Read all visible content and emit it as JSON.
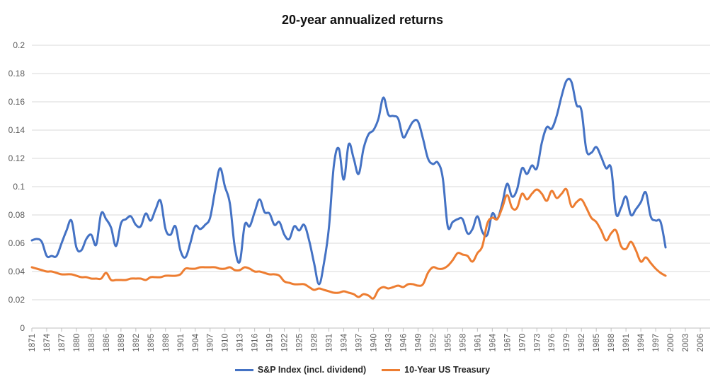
{
  "chart_data": {
    "type": "line",
    "title": "20-year annualized returns",
    "xlabel": "",
    "ylabel": "",
    "ylim": [
      0,
      0.2
    ],
    "yticks": [
      "0",
      "0.02",
      "0.04",
      "0.06",
      "0.08",
      "0.1",
      "0.12",
      "0.14",
      "0.16",
      "0.18",
      "0.2"
    ],
    "xlim": [
      1871,
      2008
    ],
    "xticks": [
      "1871",
      "1874",
      "1877",
      "1880",
      "1883",
      "1886",
      "1889",
      "1892",
      "1895",
      "1898",
      "1901",
      "1904",
      "1907",
      "1910",
      "1913",
      "1916",
      "1919",
      "1922",
      "1925",
      "1928",
      "1931",
      "1934",
      "1937",
      "1940",
      "1943",
      "1946",
      "1949",
      "1952",
      "1955",
      "1958",
      "1961",
      "1964",
      "1967",
      "1970",
      "1973",
      "1976",
      "1979",
      "1982",
      "1985",
      "1988",
      "1991",
      "1994",
      "1997",
      "2000",
      "2003",
      "2006"
    ],
    "grid": true,
    "legend_position": "bottom",
    "series": [
      {
        "name": "S&P Index (incl. dividend)",
        "color": "#4472C4",
        "x": [
          1871,
          1872,
          1873,
          1874,
          1875,
          1876,
          1877,
          1878,
          1879,
          1880,
          1881,
          1882,
          1883,
          1884,
          1885,
          1886,
          1887,
          1888,
          1889,
          1890,
          1891,
          1892,
          1893,
          1894,
          1895,
          1896,
          1897,
          1898,
          1899,
          1900,
          1901,
          1902,
          1903,
          1904,
          1905,
          1906,
          1907,
          1908,
          1909,
          1910,
          1911,
          1912,
          1913,
          1914,
          1915,
          1916,
          1917,
          1918,
          1919,
          1920,
          1921,
          1922,
          1923,
          1924,
          1925,
          1926,
          1927,
          1928,
          1929,
          1930,
          1931,
          1932,
          1933,
          1934,
          1935,
          1936,
          1937,
          1938,
          1939,
          1940,
          1941,
          1942,
          1943,
          1944,
          1945,
          1946,
          1947,
          1948,
          1949,
          1950,
          1951,
          1952,
          1953,
          1954,
          1955,
          1956,
          1957,
          1958,
          1959,
          1960,
          1961,
          1962,
          1963,
          1964,
          1965,
          1966,
          1967,
          1968,
          1969,
          1970,
          1971,
          1972,
          1973,
          1974,
          1975,
          1976,
          1977,
          1978,
          1979,
          1980,
          1981,
          1982,
          1983,
          1984,
          1985,
          1986,
          1987,
          1988,
          1989,
          1990,
          1991,
          1992,
          1993,
          1994,
          1995,
          1996,
          1997,
          1998,
          1999
        ],
        "values": [
          0.062,
          0.063,
          0.061,
          0.051,
          0.051,
          0.051,
          0.06,
          0.069,
          0.076,
          0.057,
          0.055,
          0.063,
          0.066,
          0.059,
          0.081,
          0.077,
          0.071,
          0.058,
          0.074,
          0.077,
          0.079,
          0.073,
          0.072,
          0.081,
          0.076,
          0.084,
          0.09,
          0.07,
          0.066,
          0.072,
          0.055,
          0.05,
          0.06,
          0.072,
          0.07,
          0.073,
          0.078,
          0.097,
          0.113,
          0.1,
          0.088,
          0.057,
          0.047,
          0.073,
          0.072,
          0.082,
          0.091,
          0.082,
          0.081,
          0.073,
          0.075,
          0.066,
          0.063,
          0.072,
          0.069,
          0.073,
          0.062,
          0.046,
          0.031,
          0.046,
          0.071,
          0.115,
          0.127,
          0.105,
          0.13,
          0.12,
          0.109,
          0.127,
          0.137,
          0.14,
          0.148,
          0.163,
          0.151,
          0.15,
          0.148,
          0.135,
          0.14,
          0.146,
          0.146,
          0.134,
          0.12,
          0.116,
          0.117,
          0.106,
          0.072,
          0.075,
          0.077,
          0.077,
          0.067,
          0.07,
          0.079,
          0.068,
          0.066,
          0.081,
          0.077,
          0.088,
          0.102,
          0.093,
          0.098,
          0.113,
          0.109,
          0.115,
          0.113,
          0.131,
          0.142,
          0.141,
          0.15,
          0.164,
          0.175,
          0.174,
          0.158,
          0.154,
          0.126,
          0.124,
          0.128,
          0.121,
          0.113,
          0.113,
          0.081,
          0.085,
          0.093,
          0.08,
          0.084,
          0.089,
          0.096,
          0.079,
          0.076,
          0.075,
          0.057
        ]
      },
      {
        "name": "10-Year US Treasury",
        "color": "#ED7D31",
        "x": [
          1871,
          1872,
          1873,
          1874,
          1875,
          1876,
          1877,
          1878,
          1879,
          1880,
          1881,
          1882,
          1883,
          1884,
          1885,
          1886,
          1887,
          1888,
          1889,
          1890,
          1891,
          1892,
          1893,
          1894,
          1895,
          1896,
          1897,
          1898,
          1899,
          1900,
          1901,
          1902,
          1903,
          1904,
          1905,
          1906,
          1907,
          1908,
          1909,
          1910,
          1911,
          1912,
          1913,
          1914,
          1915,
          1916,
          1917,
          1918,
          1919,
          1920,
          1921,
          1922,
          1923,
          1924,
          1925,
          1926,
          1927,
          1928,
          1929,
          1930,
          1931,
          1932,
          1933,
          1934,
          1935,
          1936,
          1937,
          1938,
          1939,
          1940,
          1941,
          1942,
          1943,
          1944,
          1945,
          1946,
          1947,
          1948,
          1949,
          1950,
          1951,
          1952,
          1953,
          1954,
          1955,
          1956,
          1957,
          1958,
          1959,
          1960,
          1961,
          1962,
          1963,
          1964,
          1965,
          1966,
          1967,
          1968,
          1969,
          1970,
          1971,
          1972,
          1973,
          1974,
          1975,
          1976,
          1977,
          1978,
          1979,
          1980,
          1981,
          1982,
          1983,
          1984,
          1985,
          1986,
          1987,
          1988,
          1989,
          1990,
          1991,
          1992,
          1993,
          1994,
          1995,
          1996,
          1997,
          1998,
          1999
        ],
        "values": [
          0.043,
          0.042,
          0.041,
          0.04,
          0.04,
          0.039,
          0.038,
          0.038,
          0.038,
          0.037,
          0.036,
          0.036,
          0.035,
          0.035,
          0.035,
          0.039,
          0.034,
          0.034,
          0.034,
          0.034,
          0.035,
          0.035,
          0.035,
          0.034,
          0.036,
          0.036,
          0.036,
          0.037,
          0.037,
          0.037,
          0.038,
          0.042,
          0.042,
          0.042,
          0.043,
          0.043,
          0.043,
          0.043,
          0.042,
          0.042,
          0.043,
          0.041,
          0.041,
          0.043,
          0.042,
          0.04,
          0.04,
          0.039,
          0.038,
          0.038,
          0.037,
          0.033,
          0.032,
          0.031,
          0.031,
          0.031,
          0.029,
          0.027,
          0.028,
          0.027,
          0.026,
          0.025,
          0.025,
          0.026,
          0.025,
          0.024,
          0.022,
          0.024,
          0.023,
          0.021,
          0.027,
          0.029,
          0.028,
          0.029,
          0.03,
          0.029,
          0.031,
          0.031,
          0.03,
          0.031,
          0.039,
          0.043,
          0.042,
          0.042,
          0.044,
          0.048,
          0.053,
          0.052,
          0.051,
          0.047,
          0.053,
          0.058,
          0.074,
          0.078,
          0.077,
          0.085,
          0.094,
          0.085,
          0.085,
          0.095,
          0.091,
          0.095,
          0.098,
          0.095,
          0.09,
          0.097,
          0.092,
          0.095,
          0.098,
          0.086,
          0.089,
          0.091,
          0.085,
          0.078,
          0.075,
          0.069,
          0.062,
          0.067,
          0.069,
          0.058,
          0.056,
          0.061,
          0.055,
          0.047,
          0.05,
          0.046,
          0.042,
          0.039,
          0.037
        ]
      }
    ]
  }
}
